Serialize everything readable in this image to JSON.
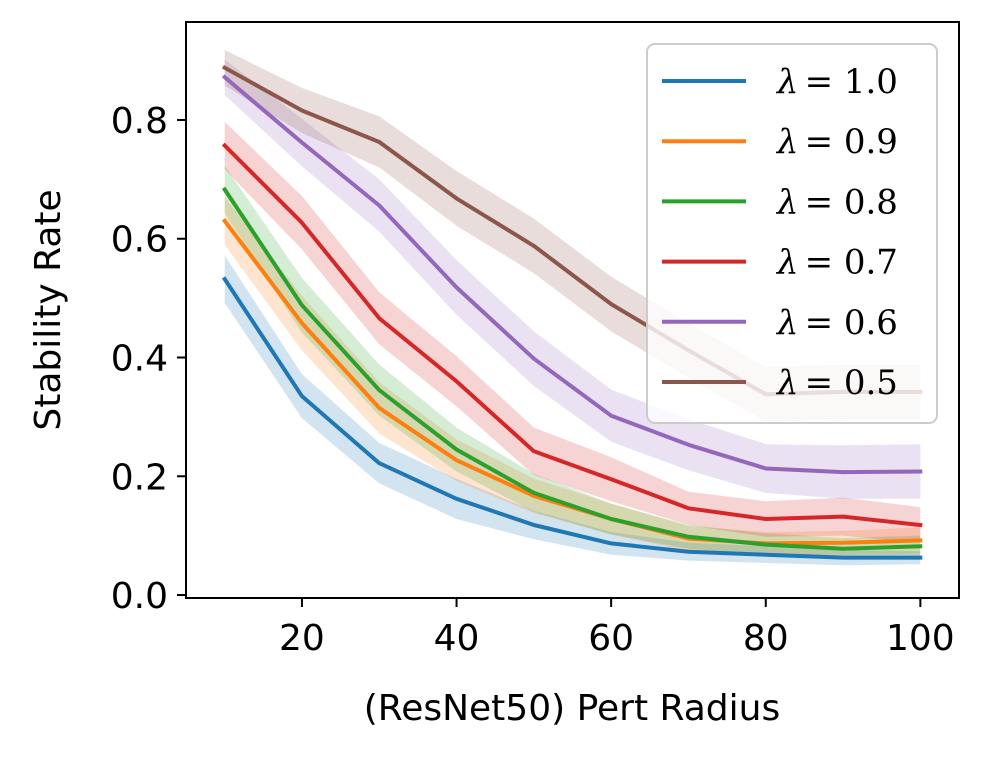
{
  "chart_data": {
    "type": "line",
    "title": "",
    "xlabel": "(ResNet50) Pert Radius",
    "ylabel": "Stability Rate",
    "x": [
      10,
      20,
      30,
      40,
      50,
      60,
      70,
      80,
      90,
      100
    ],
    "xlim": [
      5,
      105
    ],
    "ylim": [
      -0.005,
      0.965
    ],
    "xticks": [
      20,
      40,
      60,
      80,
      100
    ],
    "xtick_labels": [
      "20",
      "40",
      "60",
      "80",
      "100"
    ],
    "yticks": [
      0.0,
      0.2,
      0.4,
      0.6,
      0.8
    ],
    "ytick_labels": [
      "0.0",
      "0.2",
      "0.4",
      "0.6",
      "0.8"
    ],
    "grid": false,
    "legend_position": "top-right",
    "series": [
      {
        "name": "λ = 1.0",
        "legend_prefix": "λ",
        "legend_value": "= 1.0",
        "color": "#1f77b4",
        "values": [
          0.532,
          0.335,
          0.222,
          0.162,
          0.118,
          0.087,
          0.073,
          0.068,
          0.063,
          0.063
        ],
        "lower": [
          0.492,
          0.298,
          0.188,
          0.128,
          0.094,
          0.068,
          0.058,
          0.054,
          0.05,
          0.052
        ],
        "upper": [
          0.572,
          0.372,
          0.256,
          0.196,
          0.142,
          0.106,
          0.088,
          0.082,
          0.076,
          0.074
        ]
      },
      {
        "name": "λ = 0.9",
        "legend_prefix": "λ",
        "legend_value": "= 0.9",
        "color": "#ff7f0e",
        "values": [
          0.63,
          0.458,
          0.315,
          0.227,
          0.167,
          0.128,
          0.095,
          0.087,
          0.088,
          0.092
        ],
        "lower": [
          0.59,
          0.412,
          0.272,
          0.192,
          0.138,
          0.102,
          0.074,
          0.068,
          0.068,
          0.07
        ],
        "upper": [
          0.67,
          0.504,
          0.358,
          0.262,
          0.196,
          0.154,
          0.116,
          0.106,
          0.108,
          0.114
        ]
      },
      {
        "name": "λ = 0.8",
        "legend_prefix": "λ",
        "legend_value": "= 0.8",
        "color": "#2ca02c",
        "values": [
          0.683,
          0.488,
          0.345,
          0.245,
          0.172,
          0.128,
          0.098,
          0.085,
          0.078,
          0.082
        ],
        "lower": [
          0.643,
          0.442,
          0.302,
          0.208,
          0.14,
          0.102,
          0.078,
          0.066,
          0.06,
          0.064
        ],
        "upper": [
          0.723,
          0.534,
          0.388,
          0.282,
          0.204,
          0.154,
          0.118,
          0.104,
          0.096,
          0.1
        ]
      },
      {
        "name": "λ = 0.7",
        "legend_prefix": "λ",
        "legend_value": "= 0.7",
        "color": "#d62728",
        "values": [
          0.757,
          0.627,
          0.466,
          0.36,
          0.242,
          0.195,
          0.146,
          0.128,
          0.132,
          0.118
        ],
        "lower": [
          0.717,
          0.582,
          0.422,
          0.318,
          0.202,
          0.158,
          0.118,
          0.098,
          0.1,
          0.088
        ],
        "upper": [
          0.797,
          0.672,
          0.51,
          0.402,
          0.282,
          0.232,
          0.174,
          0.158,
          0.164,
          0.148
        ]
      },
      {
        "name": "λ = 0.6",
        "legend_prefix": "λ",
        "legend_value": "= 0.6",
        "color": "#9467bd",
        "values": [
          0.872,
          0.762,
          0.656,
          0.518,
          0.398,
          0.302,
          0.253,
          0.213,
          0.207,
          0.208
        ],
        "lower": [
          0.842,
          0.722,
          0.612,
          0.472,
          0.352,
          0.258,
          0.21,
          0.172,
          0.162,
          0.162
        ],
        "upper": [
          0.902,
          0.802,
          0.7,
          0.564,
          0.444,
          0.346,
          0.296,
          0.254,
          0.252,
          0.254
        ]
      },
      {
        "name": "λ = 0.5",
        "legend_prefix": "λ",
        "legend_value": "= 0.5",
        "color": "#8c564b",
        "values": [
          0.888,
          0.816,
          0.763,
          0.668,
          0.588,
          0.49,
          0.412,
          0.338,
          0.342,
          0.342
        ],
        "lower": [
          0.858,
          0.778,
          0.72,
          0.622,
          0.542,
          0.444,
          0.366,
          0.292,
          0.296,
          0.296
        ],
        "upper": [
          0.918,
          0.854,
          0.806,
          0.714,
          0.634,
          0.536,
          0.458,
          0.384,
          0.388,
          0.388
        ]
      }
    ]
  }
}
